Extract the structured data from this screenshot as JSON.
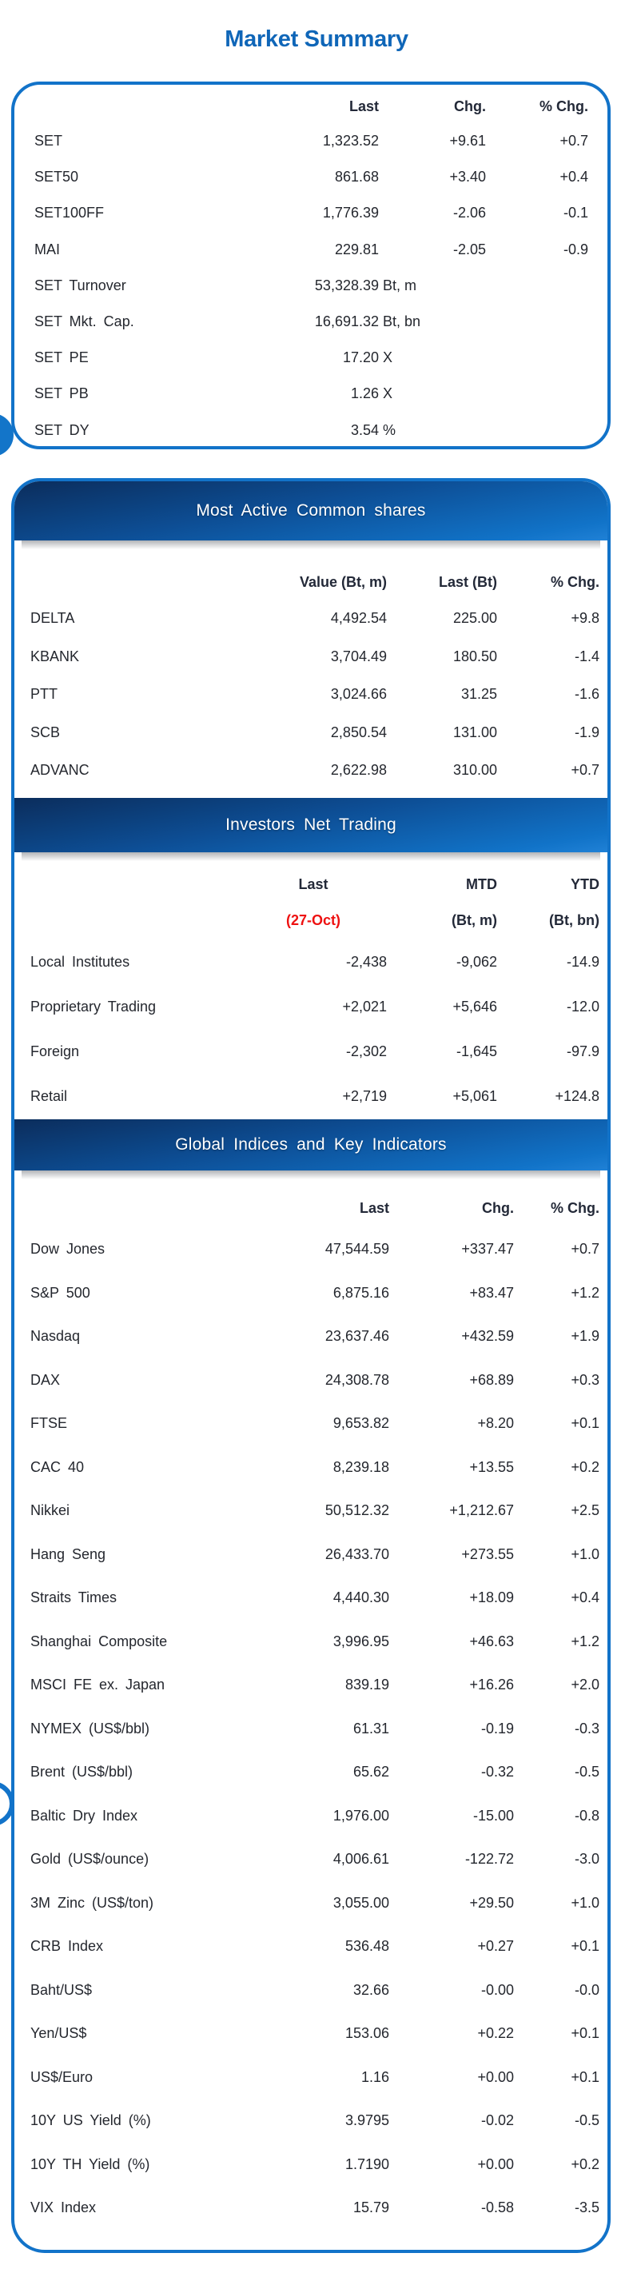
{
  "page": {
    "title": "Market Summary"
  },
  "colors": {
    "accent_blue": "#1273c9",
    "title_blue": "#0f66b8",
    "bar_gradient_top": "#0b2d5c",
    "bar_gradient_bottom": "#2081d6",
    "date_red": "#ee1111"
  },
  "market_summary": {
    "columns": [
      "Last",
      "Chg.",
      "% Chg."
    ],
    "rows": [
      {
        "label": "SET",
        "v1": "1,323.52",
        "v2": "+9.61",
        "v3": "+0.7"
      },
      {
        "label": "SET50",
        "v1": "861.68",
        "v2": "+3.40",
        "v3": "+0.4"
      },
      {
        "label": "SET100FF",
        "v1": "1,776.39",
        "v2": "-2.06",
        "v3": "-0.1"
      },
      {
        "label": "MAI",
        "v1": "229.81",
        "v2": "-2.05",
        "v3": "-0.9"
      },
      {
        "label": "SET Turnover",
        "v1": "53,328.39",
        "unit": "Bt, m",
        "v2": "",
        "v3": ""
      },
      {
        "label": "SET Mkt. Cap.",
        "v1": "16,691.32",
        "unit": "Bt, bn",
        "v2": "",
        "v3": ""
      },
      {
        "label": "SET PE",
        "v1": "17.20",
        "unit": "X",
        "v2": "",
        "v3": ""
      },
      {
        "label": "SET PB",
        "v1": "1.26",
        "unit": "X",
        "v2": "",
        "v3": ""
      },
      {
        "label": "SET DY",
        "v1": "3.54",
        "unit": "%",
        "v2": "",
        "v3": ""
      }
    ]
  },
  "most_active": {
    "title": "Most Active Common shares",
    "columns": [
      "Value (Bt, m)",
      "Last (Bt)",
      "% Chg."
    ],
    "rows": [
      {
        "label": "DELTA",
        "v1": "4,492.54",
        "v2": "225.00",
        "v3": "+9.8"
      },
      {
        "label": "KBANK",
        "v1": "3,704.49",
        "v2": "180.50",
        "v3": "-1.4"
      },
      {
        "label": "PTT",
        "v1": "3,024.66",
        "v2": "31.25",
        "v3": "-1.6"
      },
      {
        "label": "SCB",
        "v1": "2,850.54",
        "v2": "131.00",
        "v3": "-1.9"
      },
      {
        "label": "ADVANC",
        "v1": "2,622.98",
        "v2": "310.00",
        "v3": "+0.7"
      }
    ]
  },
  "investors": {
    "title": "Investors Net Trading",
    "columns": [
      "Last",
      "MTD",
      "YTD"
    ],
    "subcolumns": [
      "(27-Oct)",
      "(Bt, m)",
      "(Bt, bn)"
    ],
    "rows": [
      {
        "label": "Local Institutes",
        "v1": "-2,438",
        "v2": "-9,062",
        "v3": "-14.9"
      },
      {
        "label": "Proprietary Trading",
        "v1": "+2,021",
        "v2": "+5,646",
        "v3": "-12.0"
      },
      {
        "label": "Foreign",
        "v1": "-2,302",
        "v2": "-1,645",
        "v3": "-97.9"
      },
      {
        "label": "Retail",
        "v1": "+2,719",
        "v2": "+5,061",
        "v3": "+124.8"
      }
    ]
  },
  "global_indices": {
    "title": "Global Indices and Key Indicators",
    "columns": [
      "Last",
      "Chg.",
      "% Chg."
    ],
    "rows": [
      {
        "label": "Dow Jones",
        "v1": "47,544.59",
        "v2": "+337.47",
        "v3": "+0.7"
      },
      {
        "label": "S&P 500",
        "v1": "6,875.16",
        "v2": "+83.47",
        "v3": "+1.2"
      },
      {
        "label": "Nasdaq",
        "v1": "23,637.46",
        "v2": "+432.59",
        "v3": "+1.9"
      },
      {
        "label": "DAX",
        "v1": "24,308.78",
        "v2": "+68.89",
        "v3": "+0.3"
      },
      {
        "label": "FTSE",
        "v1": "9,653.82",
        "v2": "+8.20",
        "v3": "+0.1"
      },
      {
        "label": "CAC 40",
        "v1": "8,239.18",
        "v2": "+13.55",
        "v3": "+0.2"
      },
      {
        "label": "Nikkei",
        "v1": "50,512.32",
        "v2": "+1,212.67",
        "v3": "+2.5"
      },
      {
        "label": "Hang Seng",
        "v1": "26,433.70",
        "v2": "+273.55",
        "v3": "+1.0"
      },
      {
        "label": "Straits Times",
        "v1": "4,440.30",
        "v2": "+18.09",
        "v3": "+0.4"
      },
      {
        "label": "Shanghai Composite",
        "v1": "3,996.95",
        "v2": "+46.63",
        "v3": "+1.2"
      },
      {
        "label": "MSCI FE ex. Japan",
        "v1": "839.19",
        "v2": "+16.26",
        "v3": "+2.0"
      },
      {
        "label": "NYMEX (US$/bbl)",
        "v1": "61.31",
        "v2": "-0.19",
        "v3": "-0.3"
      },
      {
        "label": "Brent (US$/bbl)",
        "v1": "65.62",
        "v2": "-0.32",
        "v3": "-0.5"
      },
      {
        "label": "Baltic Dry Index",
        "v1": "1,976.00",
        "v2": "-15.00",
        "v3": "-0.8"
      },
      {
        "label": "Gold (US$/ounce)",
        "v1": "4,006.61",
        "v2": "-122.72",
        "v3": "-3.0"
      },
      {
        "label": "3M Zinc (US$/ton)",
        "v1": "3,055.00",
        "v2": "+29.50",
        "v3": "+1.0"
      },
      {
        "label": "CRB Index",
        "v1": "536.48",
        "v2": "+0.27",
        "v3": "+0.1"
      },
      {
        "label": "Baht/US$",
        "v1": "32.66",
        "v2": "-0.00",
        "v3": "-0.0"
      },
      {
        "label": "Yen/US$",
        "v1": "153.06",
        "v2": "+0.22",
        "v3": "+0.1"
      },
      {
        "label": "US$/Euro",
        "v1": "1.16",
        "v2": "+0.00",
        "v3": "+0.1"
      },
      {
        "label": "10Y US Yield (%)",
        "v1": "3.9795",
        "v2": "-0.02",
        "v3": "-0.5"
      },
      {
        "label": "10Y TH Yield (%)",
        "v1": "1.7190",
        "v2": "+0.00",
        "v3": "+0.2"
      },
      {
        "label": "VIX Index",
        "v1": "15.79",
        "v2": "-0.58",
        "v3": "-3.5"
      }
    ]
  }
}
